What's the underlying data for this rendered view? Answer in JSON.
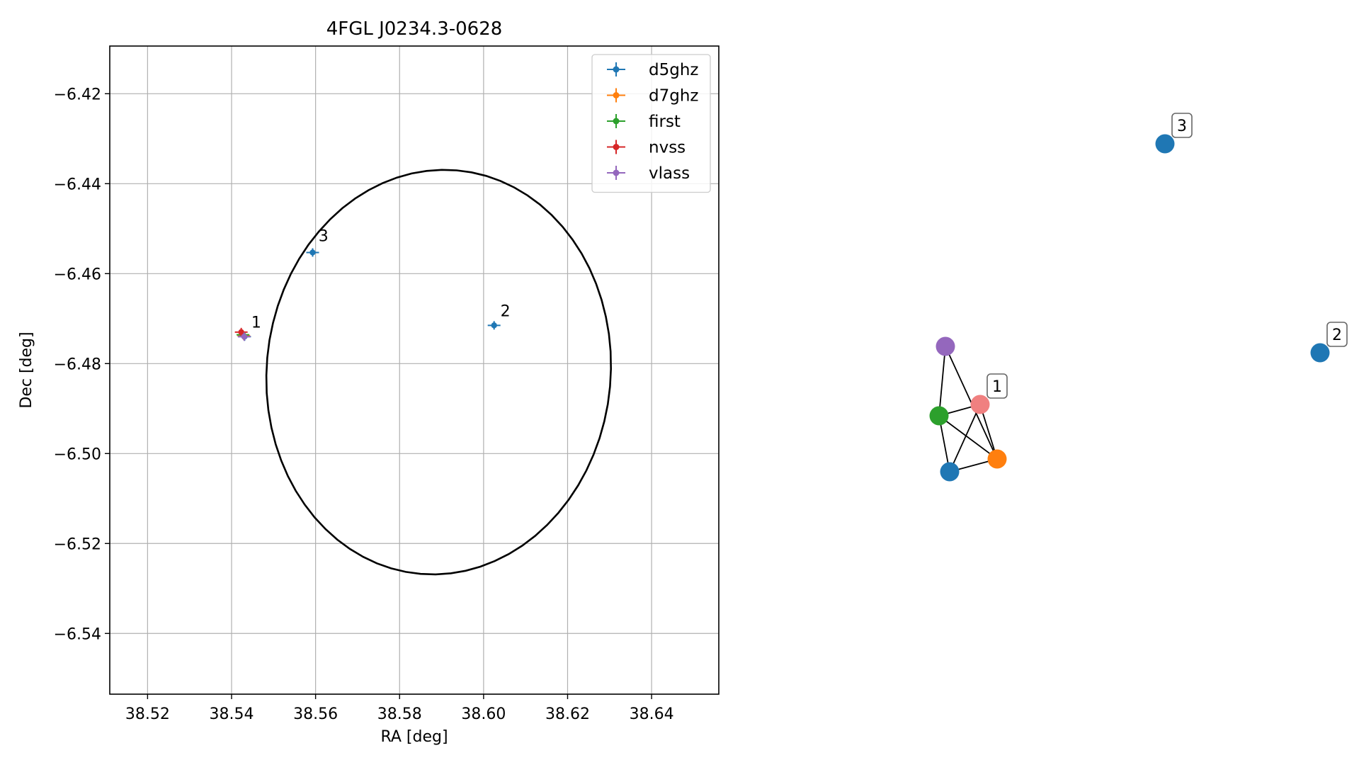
{
  "chart_data": [
    {
      "type": "scatter",
      "title": "4FGL J0234.3-0628",
      "xlabel": "RA [deg]",
      "ylabel": "Dec [deg]",
      "xlim": [
        38.511,
        38.656
      ],
      "ylim": [
        -6.5535,
        -6.4094
      ],
      "grid": true,
      "legend_placement": "top-right",
      "x_ticks": [
        38.52,
        38.54,
        38.56,
        38.58,
        38.6,
        38.62,
        38.64
      ],
      "x_tick_labels": [
        "38.52",
        "38.54",
        "38.56",
        "38.58",
        "38.60",
        "38.62",
        "38.64"
      ],
      "y_ticks": [
        -6.42,
        -6.44,
        -6.46,
        -6.48,
        -6.5,
        -6.52,
        -6.54
      ],
      "y_tick_labels": [
        "−6.42",
        "−6.44",
        "−6.46",
        "−6.48",
        "−6.50",
        "−6.52",
        "−6.54"
      ],
      "series": [
        {
          "name": "d5ghz",
          "color": "#1f77b4",
          "points": [
            {
              "x": 38.5431,
              "y": -6.474
            },
            {
              "x": 38.6025,
              "y": -6.4715
            },
            {
              "x": 38.5593,
              "y": -6.4553
            }
          ]
        },
        {
          "name": "d7ghz",
          "color": "#ff7f0e",
          "points": [
            {
              "x": 38.5429,
              "y": -6.4738
            }
          ]
        },
        {
          "name": "first",
          "color": "#2ca02c",
          "points": [
            {
              "x": 38.5427,
              "y": -6.4736
            }
          ]
        },
        {
          "name": "nvss",
          "color": "#d62728",
          "points": [
            {
              "x": 38.5423,
              "y": -6.473
            }
          ]
        },
        {
          "name": "vlass",
          "color": "#9467bd",
          "points": [
            {
              "x": 38.543,
              "y": -6.474
            }
          ]
        }
      ],
      "ellipse": {
        "center_x": 38.5893,
        "center_y": -6.4819,
        "semi_x": 0.0409,
        "semi_y": 0.0451,
        "angle_deg": -10
      },
      "annotations": [
        {
          "text": "1",
          "x": 38.5447,
          "y": -6.472
        },
        {
          "text": "2",
          "x": 38.604,
          "y": -6.4695
        },
        {
          "text": "3",
          "x": 38.5607,
          "y": -6.4528
        }
      ]
    },
    {
      "type": "network",
      "nodes": [
        {
          "id": "vlass",
          "color": "#9467bd",
          "label": ""
        },
        {
          "id": "first",
          "color": "#2ca02c",
          "label": ""
        },
        {
          "id": "d5ghz",
          "color": "#1f77b4",
          "label": ""
        },
        {
          "id": "d7ghz",
          "color": "#ff7f0e",
          "label": ""
        },
        {
          "id": "nvss",
          "color": "#f08080",
          "label": "1"
        },
        {
          "id": "src2",
          "color": "#1f77b4",
          "label": "2"
        },
        {
          "id": "src3",
          "color": "#1f77b4",
          "label": "3"
        }
      ],
      "edges": [
        [
          "vlass",
          "first"
        ],
        [
          "vlass",
          "d7ghz"
        ],
        [
          "first",
          "nvss"
        ],
        [
          "first",
          "d5ghz"
        ],
        [
          "first",
          "d7ghz"
        ],
        [
          "d5ghz",
          "nvss"
        ],
        [
          "d5ghz",
          "d7ghz"
        ],
        [
          "nvss",
          "d7ghz"
        ]
      ]
    }
  ]
}
